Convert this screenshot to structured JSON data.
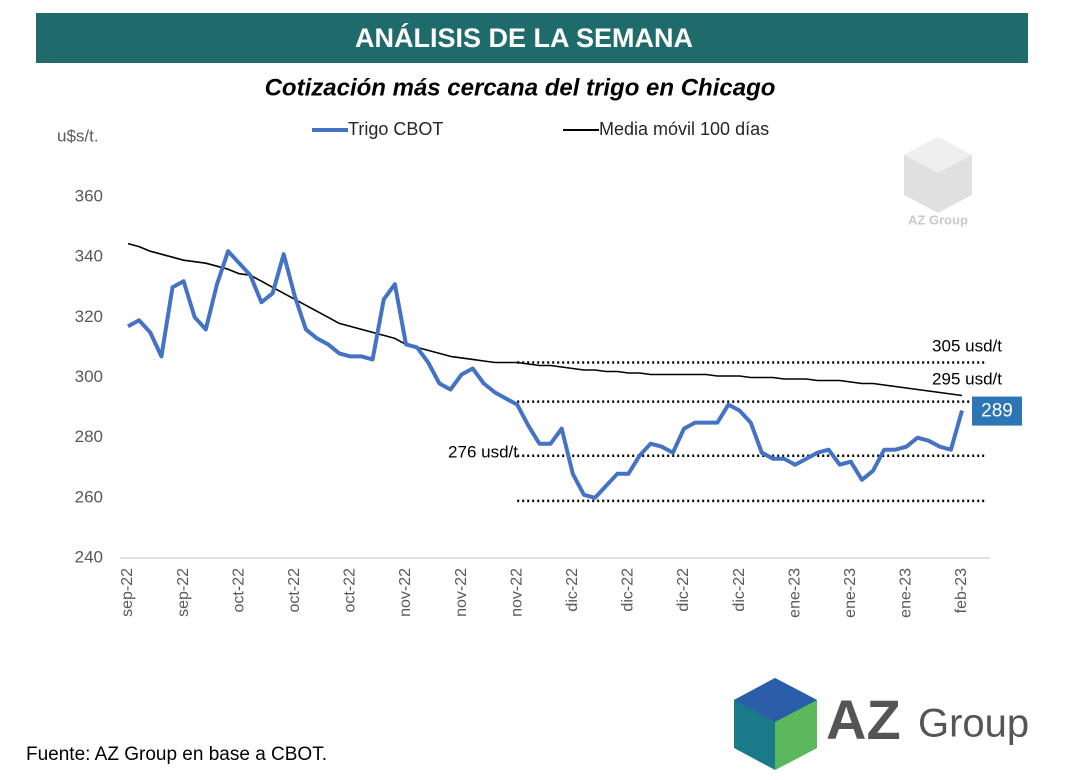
{
  "header": "ANÁLISIS DE LA SEMANA",
  "chart_data": {
    "type": "line",
    "title": "Cotización más cercana del trigo en Chicago",
    "y_label": "u$s/t.",
    "categories": [
      "sep-22",
      null,
      null,
      null,
      null,
      "sep-22",
      null,
      null,
      null,
      null,
      "oct-22",
      null,
      null,
      null,
      null,
      "oct-22",
      null,
      null,
      null,
      null,
      "oct-22",
      null,
      null,
      null,
      null,
      "nov-22",
      null,
      null,
      null,
      null,
      "nov-22",
      null,
      null,
      null,
      null,
      "nov-22",
      null,
      null,
      null,
      null,
      "dic-22",
      null,
      null,
      null,
      null,
      "dic-22",
      null,
      null,
      null,
      null,
      "dic-22",
      null,
      null,
      null,
      null,
      "dic-22",
      null,
      null,
      null,
      null,
      "ene-23",
      null,
      null,
      null,
      null,
      "ene-23",
      null,
      null,
      null,
      null,
      "ene-23",
      null,
      null,
      null,
      null,
      "feb-23"
    ],
    "series": [
      {
        "name": "Trigo CBOT",
        "color": "#4472c4",
        "values": [
          317,
          319,
          315,
          307,
          330,
          332,
          320,
          316,
          331,
          342,
          338,
          334,
          325,
          328,
          341,
          327,
          316,
          313,
          311,
          308,
          307,
          307,
          306,
          326,
          331,
          311,
          310,
          305,
          298,
          296,
          301,
          303,
          298,
          295,
          293,
          291,
          284,
          278,
          278,
          283,
          268,
          261,
          260,
          264,
          268,
          268,
          274,
          278,
          277,
          275,
          283,
          285,
          285,
          285,
          291,
          289,
          285,
          275,
          273,
          273,
          271,
          273,
          275,
          276,
          271,
          272,
          266,
          269,
          276,
          276,
          277,
          280,
          279,
          277,
          276,
          289
        ]
      },
      {
        "name": "Media móvil 100 días",
        "color": "#000000",
        "values": [
          344.5,
          343.5,
          342,
          341,
          340,
          339,
          338.5,
          338,
          337,
          336,
          334.5,
          334,
          332,
          330,
          328,
          326,
          324,
          322,
          320,
          318,
          317,
          316,
          315,
          314,
          313,
          311,
          310,
          309,
          308,
          307,
          306.5,
          306,
          305.5,
          305,
          305,
          305,
          304.5,
          304,
          304,
          303.5,
          303,
          302.5,
          302.5,
          302,
          302,
          301.5,
          301.5,
          301,
          301,
          301,
          301,
          301,
          301,
          300.5,
          300.5,
          300.5,
          300,
          300,
          300,
          299.5,
          299.5,
          299.5,
          299,
          299,
          299,
          298.5,
          298,
          298,
          297.5,
          297,
          296.5,
          296,
          295.5,
          295,
          294.5,
          294
        ]
      }
    ],
    "reference_lines": [
      305,
      292,
      274,
      259
    ],
    "annotations": [
      "305 usd/t",
      "295 usd/t",
      "276 usd/t"
    ],
    "ylim": [
      240,
      360
    ],
    "yticks": [
      240,
      260,
      280,
      300,
      320,
      340,
      360
    ]
  },
  "watermark": "AZ Group",
  "logo": {
    "brand": "AZ",
    "suffix": "Group"
  },
  "footer": "Fuente: AZ Group en base a CBOT."
}
